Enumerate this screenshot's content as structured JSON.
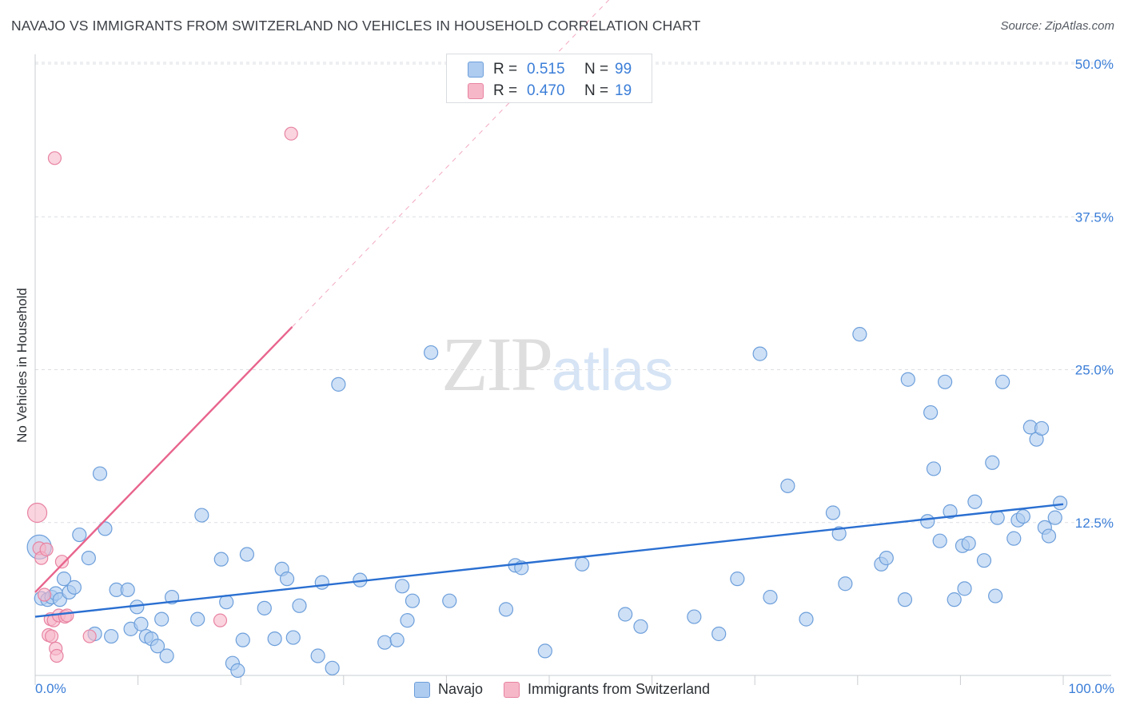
{
  "title": "NAVAJO VS IMMIGRANTS FROM SWITZERLAND NO VEHICLES IN HOUSEHOLD CORRELATION CHART",
  "source": "Source: ZipAtlas.com",
  "watermark": {
    "zip": "ZIP",
    "atlas": "atlas"
  },
  "legend": {
    "rows": [
      {
        "r_label": "R =",
        "r_value": "0.515",
        "n_label": "N =",
        "n_value": "99"
      },
      {
        "r_label": "R =",
        "r_value": "0.470",
        "n_label": "N =",
        "n_value": "19"
      }
    ]
  },
  "bottom_legend": {
    "navajo": "Navajo",
    "swiss": "Immigrants from Switzerland"
  },
  "colors": {
    "navajo_fill": "#aecbf0",
    "navajo_stroke": "#6d9fdb",
    "navajo_line": "#2a6fd1",
    "swiss_fill": "#f6b8c9",
    "swiss_stroke": "#e883a2",
    "swiss_line": "#e8648d",
    "tick_label": "#3b7ed8",
    "grid": "#dcdfe3"
  },
  "chart_data": {
    "type": "scatter",
    "title": "NAVAJO VS IMMIGRANTS FROM SWITZERLAND NO VEHICLES IN HOUSEHOLD CORRELATION CHART",
    "xlabel": "",
    "ylabel": "No Vehicles in Household",
    "xlim": [
      0,
      100
    ],
    "ylim": [
      0,
      52
    ],
    "x_tick_labels": [
      "0.0%",
      "100.0%"
    ],
    "y_ticks": [
      12.5,
      25.0,
      37.5,
      50.0
    ],
    "y_tick_labels": [
      "12.5%",
      "25.0%",
      "37.5%",
      "50.0%"
    ],
    "grid": true,
    "legend_position": "top-center",
    "series": [
      {
        "name": "Navajo",
        "r": 0.515,
        "n": 99,
        "trend": {
          "x": [
            0,
            100
          ],
          "y": [
            4.8,
            14.0
          ],
          "dashed_extension": false
        },
        "points": [
          [
            0.4,
            10.5
          ],
          [
            0.6,
            6.3
          ],
          [
            1.2,
            6.2
          ],
          [
            1.6,
            6.4
          ],
          [
            2.0,
            6.7
          ],
          [
            2.4,
            6.2
          ],
          [
            2.8,
            7.9
          ],
          [
            3.3,
            6.8
          ],
          [
            3.8,
            7.2
          ],
          [
            4.3,
            11.5
          ],
          [
            5.2,
            9.6
          ],
          [
            5.8,
            3.4
          ],
          [
            6.3,
            16.5
          ],
          [
            6.8,
            12.0
          ],
          [
            7.4,
            3.2
          ],
          [
            7.9,
            7.0
          ],
          [
            9.0,
            7.0
          ],
          [
            9.3,
            3.8
          ],
          [
            9.9,
            5.6
          ],
          [
            10.3,
            4.2
          ],
          [
            10.8,
            3.2
          ],
          [
            11.3,
            3.0
          ],
          [
            11.9,
            2.4
          ],
          [
            12.3,
            4.6
          ],
          [
            12.8,
            1.6
          ],
          [
            13.3,
            6.4
          ],
          [
            15.8,
            4.6
          ],
          [
            16.2,
            13.1
          ],
          [
            18.1,
            9.5
          ],
          [
            18.6,
            6.0
          ],
          [
            19.2,
            1.0
          ],
          [
            19.7,
            0.4
          ],
          [
            20.2,
            2.9
          ],
          [
            20.6,
            9.9
          ],
          [
            22.3,
            5.5
          ],
          [
            23.3,
            3.0
          ],
          [
            24.0,
            8.7
          ],
          [
            24.5,
            7.9
          ],
          [
            25.1,
            3.1
          ],
          [
            25.7,
            5.7
          ],
          [
            27.5,
            1.6
          ],
          [
            27.9,
            7.6
          ],
          [
            28.9,
            0.6
          ],
          [
            29.5,
            23.8
          ],
          [
            31.6,
            7.8
          ],
          [
            34.0,
            2.7
          ],
          [
            35.2,
            2.9
          ],
          [
            35.7,
            7.3
          ],
          [
            36.2,
            4.5
          ],
          [
            36.7,
            6.1
          ],
          [
            38.5,
            26.4
          ],
          [
            40.3,
            6.1
          ],
          [
            45.8,
            5.4
          ],
          [
            46.7,
            9.0
          ],
          [
            47.3,
            8.8
          ],
          [
            49.6,
            2.0
          ],
          [
            53.2,
            9.1
          ],
          [
            57.4,
            5.0
          ],
          [
            58.9,
            4.0
          ],
          [
            64.1,
            4.8
          ],
          [
            66.5,
            3.4
          ],
          [
            68.3,
            7.9
          ],
          [
            70.5,
            26.3
          ],
          [
            71.5,
            6.4
          ],
          [
            73.2,
            15.5
          ],
          [
            75.0,
            4.6
          ],
          [
            77.6,
            13.3
          ],
          [
            78.2,
            11.6
          ],
          [
            78.8,
            7.5
          ],
          [
            80.2,
            27.9
          ],
          [
            82.3,
            9.1
          ],
          [
            82.8,
            9.6
          ],
          [
            84.6,
            6.2
          ],
          [
            84.9,
            24.2
          ],
          [
            86.8,
            12.6
          ],
          [
            87.1,
            21.5
          ],
          [
            87.4,
            16.9
          ],
          [
            88.0,
            11.0
          ],
          [
            88.5,
            24.0
          ],
          [
            89.0,
            13.4
          ],
          [
            89.4,
            6.2
          ],
          [
            90.2,
            10.6
          ],
          [
            90.4,
            7.1
          ],
          [
            90.8,
            10.8
          ],
          [
            91.4,
            14.2
          ],
          [
            92.3,
            9.4
          ],
          [
            93.1,
            17.4
          ],
          [
            93.4,
            6.5
          ],
          [
            93.6,
            12.9
          ],
          [
            94.1,
            24.0
          ],
          [
            95.2,
            11.2
          ],
          [
            95.6,
            12.7
          ],
          [
            96.1,
            13.0
          ],
          [
            96.8,
            20.3
          ],
          [
            97.4,
            19.3
          ],
          [
            97.9,
            20.2
          ],
          [
            98.2,
            12.1
          ],
          [
            98.6,
            11.4
          ],
          [
            99.2,
            12.9
          ],
          [
            99.7,
            14.1
          ]
        ]
      },
      {
        "name": "Immigrants from Switzerland",
        "r": 0.47,
        "n": 19,
        "trend": {
          "x": [
            0,
            25
          ],
          "y": [
            6.8,
            28.5
          ],
          "dashed_extension_to": [
            100,
            93.6
          ]
        },
        "points": [
          [
            0.2,
            13.3
          ],
          [
            0.4,
            10.4
          ],
          [
            0.6,
            9.6
          ],
          [
            0.9,
            6.6
          ],
          [
            1.1,
            10.3
          ],
          [
            1.3,
            3.3
          ],
          [
            1.5,
            4.6
          ],
          [
            1.6,
            3.2
          ],
          [
            1.8,
            4.5
          ],
          [
            1.9,
            42.3
          ],
          [
            2.0,
            2.2
          ],
          [
            2.1,
            1.6
          ],
          [
            2.3,
            4.9
          ],
          [
            2.6,
            9.3
          ],
          [
            2.9,
            4.8
          ],
          [
            3.1,
            4.9
          ],
          [
            5.3,
            3.2
          ],
          [
            18.0,
            4.5
          ],
          [
            24.9,
            44.3
          ]
        ]
      }
    ]
  }
}
